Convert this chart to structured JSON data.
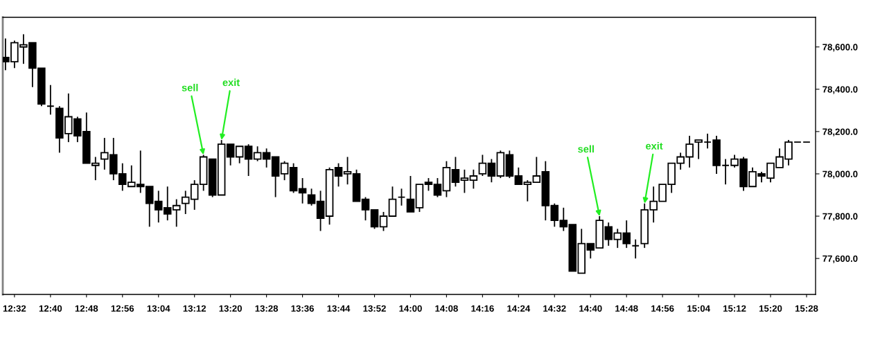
{
  "chart_data": {
    "type": "candlestick",
    "x": [
      12.5,
      12.5333,
      12.5667,
      12.6,
      12.6333,
      12.6667,
      12.7,
      12.7333,
      12.7667,
      12.8,
      12.8333,
      12.8667,
      12.9,
      12.9333,
      12.9667,
      13.0,
      13.0333,
      13.0667,
      13.1,
      13.1333,
      13.1667,
      13.2,
      13.2333,
      13.2667,
      13.3,
      13.3333,
      13.3667,
      13.4,
      13.4333,
      13.4667,
      13.5,
      13.5333,
      13.5667,
      13.6,
      13.6333,
      13.6667,
      13.7,
      13.7333,
      13.7667,
      13.8,
      13.8333,
      13.8667,
      13.9,
      13.9333,
      13.9667,
      14.0,
      14.0333,
      14.0667,
      14.1,
      14.1333,
      14.1667,
      14.2,
      14.2333,
      14.2667,
      14.3,
      14.3333,
      14.3667,
      14.4,
      14.4333,
      14.4667,
      14.5,
      14.5333,
      14.5667,
      14.6,
      14.6333,
      14.6667,
      14.7,
      14.7333,
      14.7667,
      14.8,
      14.8333,
      14.8667,
      14.9,
      14.9333,
      14.9667,
      15.0,
      15.0333,
      15.0667,
      15.1,
      15.1333,
      15.1667,
      15.2,
      15.2333,
      15.2667,
      15.3,
      15.3333,
      15.3667,
      15.4,
      15.4333,
      15.4667
    ],
    "ohlc": [
      [
        78550,
        78640,
        78490,
        78530
      ],
      [
        78530,
        78630,
        78500,
        78620
      ],
      [
        78600,
        78660,
        78520,
        78610
      ],
      [
        78620,
        78620,
        78410,
        78500
      ],
      [
        78500,
        78500,
        78320,
        78330
      ],
      [
        78320,
        78420,
        78280,
        78320
      ],
      [
        78310,
        78320,
        78100,
        78170
      ],
      [
        78190,
        78380,
        78150,
        78270
      ],
      [
        78260,
        78270,
        78150,
        78180
      ],
      [
        78200,
        78290,
        78050,
        78050
      ],
      [
        78040,
        78080,
        77970,
        78050
      ],
      [
        78070,
        78170,
        78020,
        78100
      ],
      [
        78090,
        78170,
        77970,
        78000
      ],
      [
        78000,
        78050,
        77920,
        77950
      ],
      [
        77940,
        78040,
        77940,
        77960
      ],
      [
        77950,
        78110,
        77910,
        77940
      ],
      [
        77940,
        77940,
        77750,
        77860
      ],
      [
        77870,
        77920,
        77770,
        77830
      ],
      [
        77840,
        77940,
        77780,
        77810
      ],
      [
        77830,
        77880,
        77750,
        77850
      ],
      [
        77860,
        77920,
        77810,
        77890
      ],
      [
        77880,
        77970,
        77830,
        77950
      ],
      [
        77950,
        78090,
        77920,
        78080
      ],
      [
        78070,
        78070,
        77890,
        77900
      ],
      [
        77900,
        78160,
        77900,
        78140
      ],
      [
        78140,
        78140,
        78040,
        78080
      ],
      [
        78080,
        78130,
        78050,
        78130
      ],
      [
        78130,
        78140,
        77990,
        78070
      ],
      [
        78070,
        78130,
        78060,
        78100
      ],
      [
        78100,
        78120,
        78030,
        78070
      ],
      [
        78080,
        78080,
        77890,
        77990
      ],
      [
        78000,
        78060,
        77970,
        78050
      ],
      [
        78030,
        78050,
        77910,
        77920
      ],
      [
        77930,
        77980,
        77860,
        77910
      ],
      [
        77900,
        77930,
        77850,
        77860
      ],
      [
        77870,
        77920,
        77730,
        77790
      ],
      [
        77800,
        78030,
        77760,
        78020
      ],
      [
        78030,
        78050,
        77940,
        77990
      ],
      [
        78000,
        78080,
        77950,
        78010
      ],
      [
        78000,
        78020,
        77870,
        77870
      ],
      [
        77880,
        77890,
        77780,
        77830
      ],
      [
        77830,
        77830,
        77740,
        77750
      ],
      [
        77750,
        77820,
        77730,
        77800
      ],
      [
        77800,
        77940,
        77800,
        77880
      ],
      [
        77890,
        77930,
        77850,
        77890
      ],
      [
        77880,
        77990,
        77820,
        77820
      ],
      [
        77840,
        77950,
        77820,
        77950
      ],
      [
        77960,
        77980,
        77920,
        77950
      ],
      [
        77950,
        77980,
        77890,
        77900
      ],
      [
        77920,
        78060,
        77890,
        78030
      ],
      [
        78020,
        78080,
        77940,
        77960
      ],
      [
        77970,
        78020,
        77910,
        77980
      ],
      [
        77970,
        78020,
        77930,
        77990
      ],
      [
        78000,
        78090,
        77990,
        78050
      ],
      [
        78050,
        78070,
        77960,
        77990
      ],
      [
        77990,
        78110,
        77980,
        78100
      ],
      [
        78090,
        78110,
        77980,
        77990
      ],
      [
        77990,
        78030,
        77950,
        77950
      ],
      [
        77950,
        77970,
        77870,
        77960
      ],
      [
        77960,
        78080,
        77960,
        77990
      ],
      [
        78010,
        78060,
        77780,
        77850
      ],
      [
        77850,
        77860,
        77750,
        77780
      ],
      [
        77780,
        77840,
        77730,
        77750
      ],
      [
        77760,
        77760,
        77540,
        77540
      ],
      [
        77530,
        77740,
        77530,
        77670
      ],
      [
        77670,
        77670,
        77600,
        77640
      ],
      [
        77650,
        77800,
        77650,
        77780
      ],
      [
        77750,
        77770,
        77660,
        77690
      ],
      [
        77690,
        77740,
        77650,
        77720
      ],
      [
        77720,
        77780,
        77650,
        77670
      ],
      [
        77660,
        77690,
        77600,
        77660
      ],
      [
        77670,
        77860,
        77650,
        77830
      ],
      [
        77830,
        77940,
        77770,
        77870
      ],
      [
        77870,
        77950,
        77870,
        77950
      ],
      [
        77950,
        78050,
        77910,
        78050
      ],
      [
        78050,
        78100,
        78020,
        78080
      ],
      [
        78080,
        78180,
        78030,
        78140
      ],
      [
        78150,
        78160,
        78070,
        78160
      ],
      [
        78150,
        78190,
        78120,
        78150
      ],
      [
        78160,
        78180,
        78000,
        78040
      ],
      [
        78040,
        78070,
        77950,
        78040
      ],
      [
        78040,
        78090,
        78030,
        78070
      ],
      [
        78070,
        78080,
        77920,
        77940
      ],
      [
        77940,
        78030,
        77940,
        78010
      ],
      [
        78000,
        78010,
        77960,
        77990
      ],
      [
        77980,
        78050,
        77960,
        78050
      ],
      [
        78030,
        78120,
        78030,
        78080
      ],
      [
        78070,
        78160,
        78040,
        78150
      ],
      [
        78150,
        78150,
        78150,
        78150
      ],
      [
        78150,
        78150,
        78150,
        78150
      ]
    ],
    "xlim": [
      12.49,
      15.5
    ],
    "xticks": [
      {
        "value": 12.5333,
        "label": "12:32"
      },
      {
        "value": 12.6667,
        "label": "12:40"
      },
      {
        "value": 12.8,
        "label": "12:48"
      },
      {
        "value": 12.9333,
        "label": "12:56"
      },
      {
        "value": 13.0667,
        "label": "13:04"
      },
      {
        "value": 13.2,
        "label": "13:12"
      },
      {
        "value": 13.3333,
        "label": "13:20"
      },
      {
        "value": 13.4667,
        "label": "13:28"
      },
      {
        "value": 13.6,
        "label": "13:36"
      },
      {
        "value": 13.7333,
        "label": "13:44"
      },
      {
        "value": 13.8667,
        "label": "13:52"
      },
      {
        "value": 14.0,
        "label": "14:00"
      },
      {
        "value": 14.1333,
        "label": "14:08"
      },
      {
        "value": 14.2667,
        "label": "14:16"
      },
      {
        "value": 14.4,
        "label": "14:24"
      },
      {
        "value": 14.5333,
        "label": "14:32"
      },
      {
        "value": 14.6667,
        "label": "14:40"
      },
      {
        "value": 14.8,
        "label": "14:48"
      },
      {
        "value": 14.9333,
        "label": "14:56"
      },
      {
        "value": 15.0667,
        "label": "15:04"
      },
      {
        "value": 15.2,
        "label": "15:12"
      },
      {
        "value": 15.3333,
        "label": "15:20"
      },
      {
        "value": 15.4667,
        "label": "15:28"
      }
    ],
    "ylim": [
      77430,
      78740
    ],
    "yticks": [
      {
        "value": 77600,
        "label": "77,600.0"
      },
      {
        "value": 77800,
        "label": "77,800.0"
      },
      {
        "value": 78000,
        "label": "78,000.0"
      },
      {
        "value": 78200,
        "label": "78,200.0"
      },
      {
        "value": 78400,
        "label": "78,400.0"
      },
      {
        "value": 78600,
        "label": "78,600.0"
      }
    ],
    "annotations": [
      {
        "text": "sell",
        "x": 13.2333,
        "y": 78090
      },
      {
        "text": "exit",
        "x": 13.3,
        "y": 78160
      },
      {
        "text": "sell",
        "x": 14.7,
        "y": 77800
      },
      {
        "text": "exit",
        "x": 14.8667,
        "y": 77860
      }
    ],
    "grid": false
  }
}
